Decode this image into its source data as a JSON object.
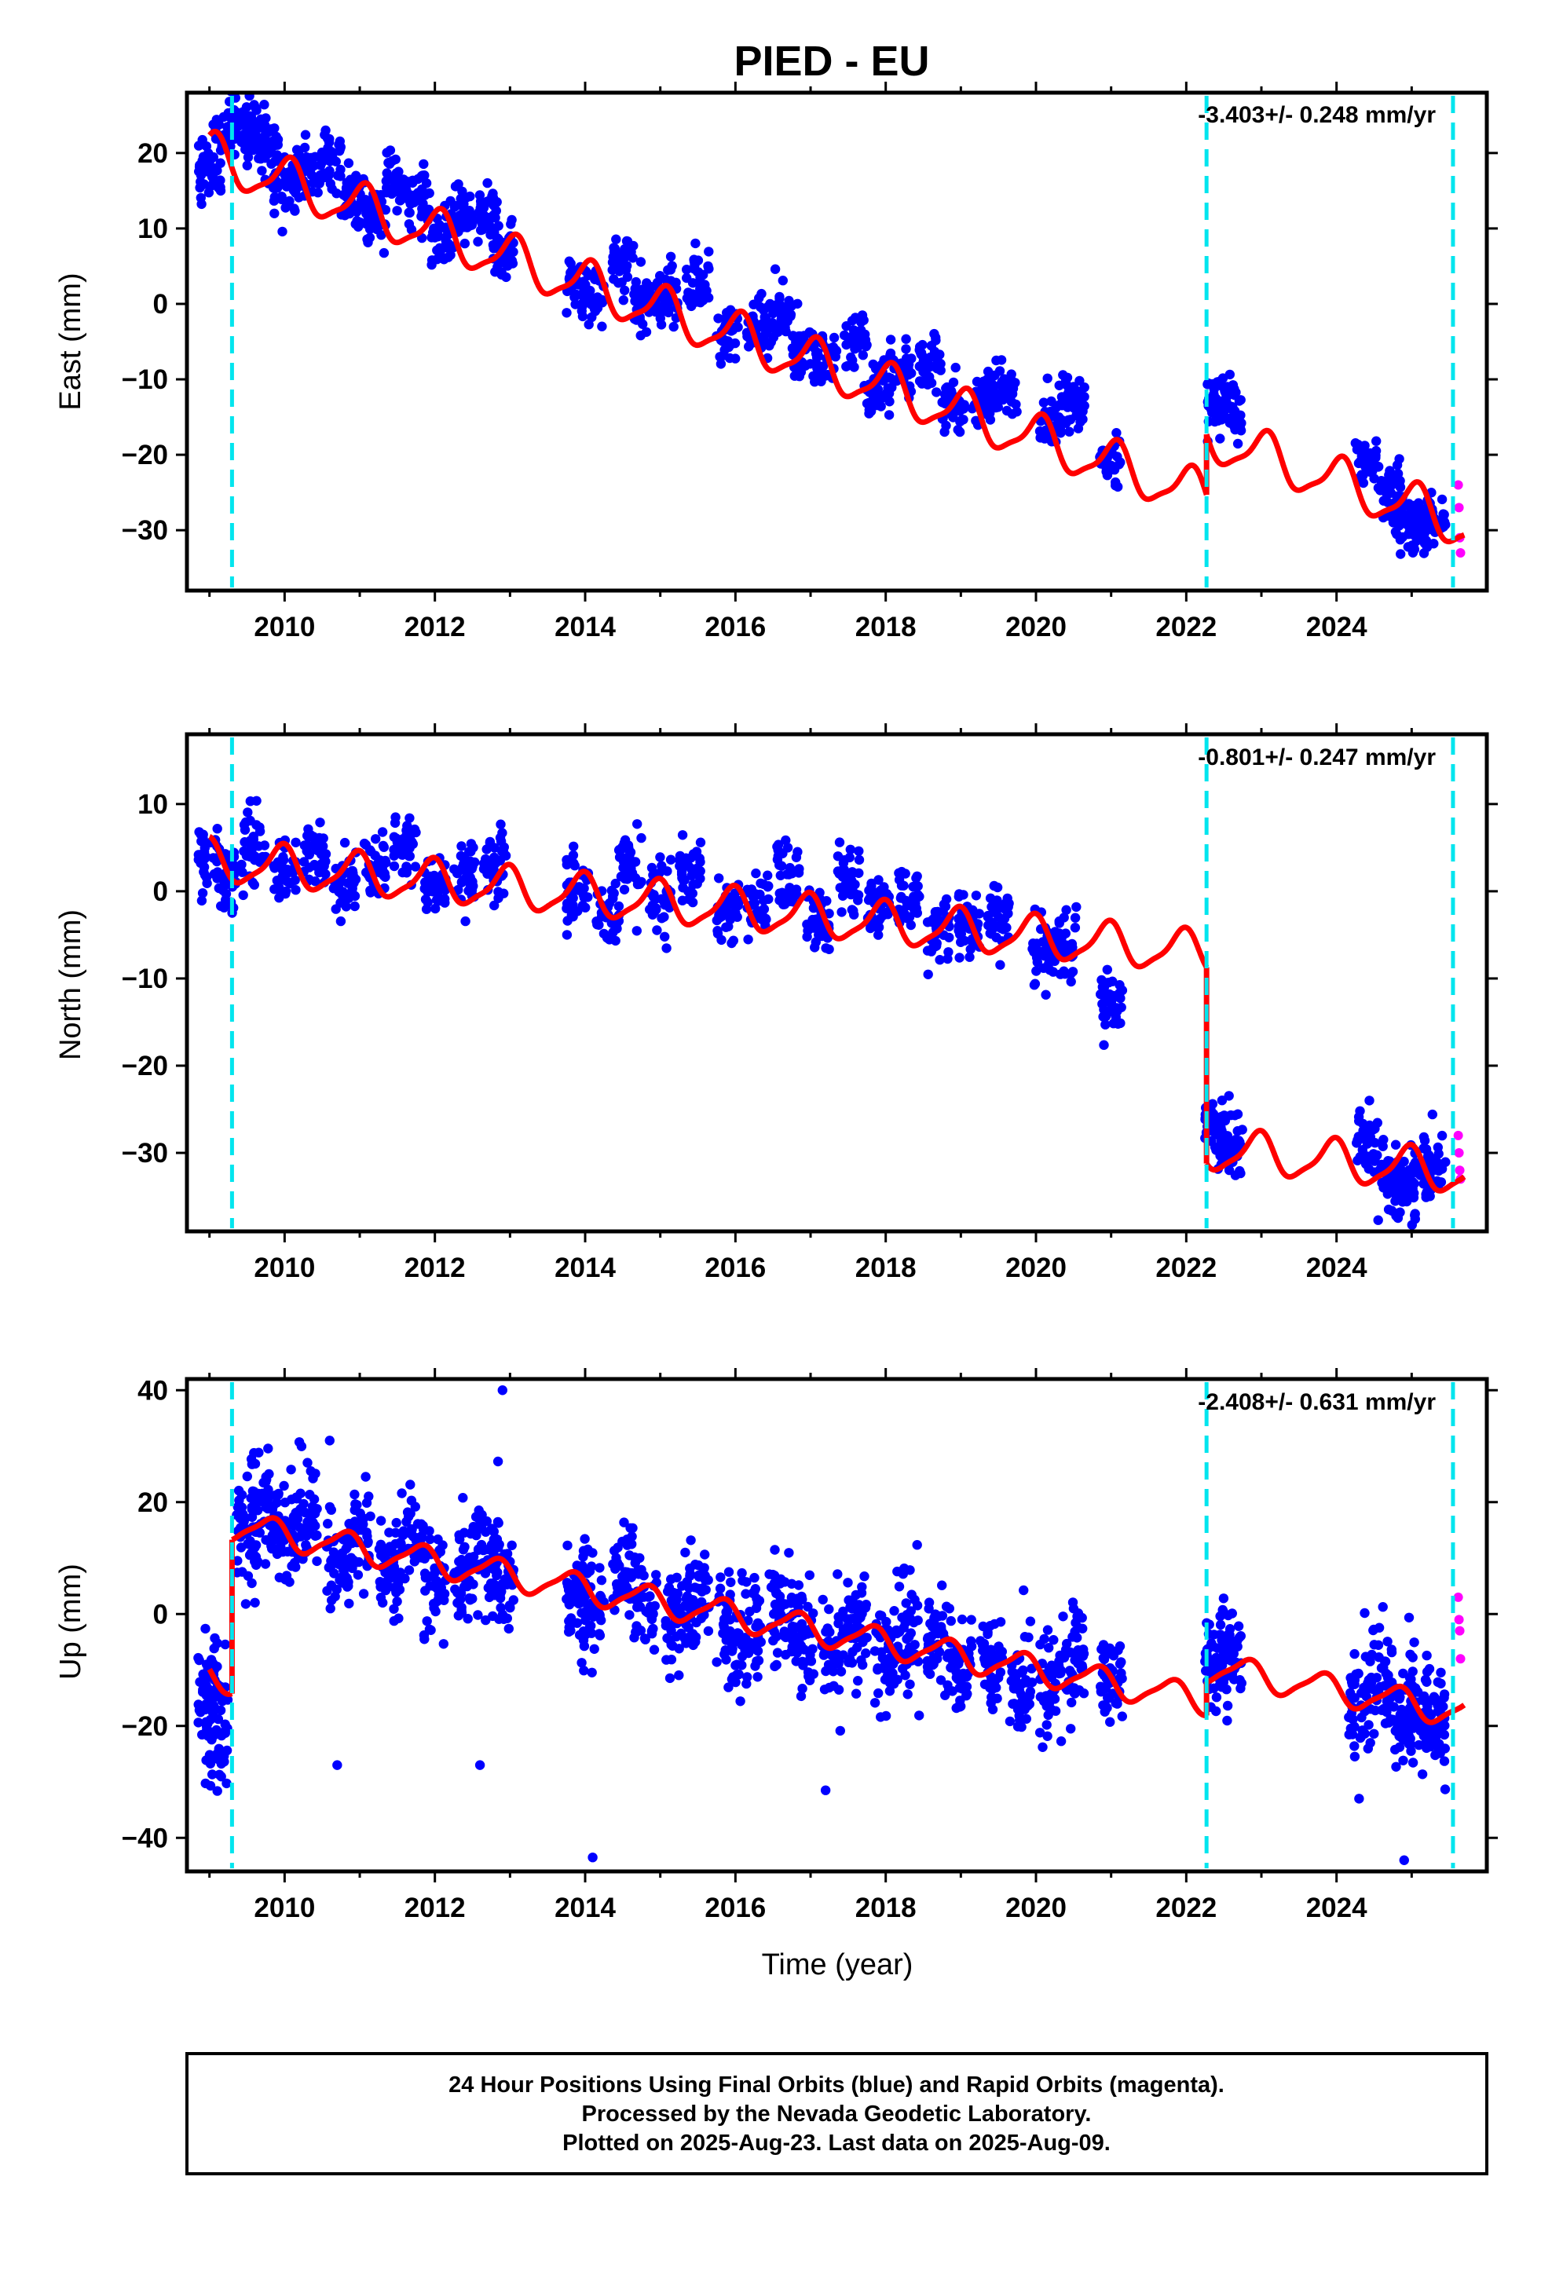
{
  "title": "PIED - EU",
  "xlabel": "Time (year)",
  "footer": {
    "line1": "24 Hour Positions Using Final Orbits (blue) and Rapid Orbits (magenta).",
    "line2": "Processed by the Nevada Geodetic Laboratory.",
    "line3": "Plotted on 2025-Aug-23. Last data on 2025-Aug-09."
  },
  "colors": {
    "final_orbits": "#0000ff",
    "rapid_orbits": "#ff00ff",
    "model": "#ff0000",
    "events": "#00e5ee"
  },
  "chart_data": [
    {
      "type": "scatter",
      "ylabel": "East (mm)",
      "rate": "-3.403+/- 0.248 mm/yr",
      "xlim": [
        2008.7,
        2026.0
      ],
      "ylim": [
        -38,
        28
      ],
      "xticks": [
        2010,
        2012,
        2014,
        2016,
        2018,
        2020,
        2022,
        2024
      ],
      "yticks": [
        20,
        10,
        0,
        -10,
        -20,
        -30
      ],
      "events": [
        2009.3,
        2022.27,
        2025.55
      ],
      "model": {
        "segments": [
          {
            "x0": 2009.0,
            "x1": 2022.27,
            "offset": 0
          },
          {
            "x0": 2022.27,
            "x1": 2025.7,
            "offset": 8
          }
        ],
        "y_at_2009": 19.5,
        "slope": -3.403,
        "annual_amp": 3.0,
        "annual_phase": 0.2,
        "semiannual_amp": 0.8,
        "semiannual_phase": 0.5
      },
      "final_orbits": [
        {
          "x": 2009.0,
          "y": 18
        },
        {
          "x": 2009.2,
          "y": 22
        },
        {
          "x": 2009.4,
          "y": 25
        },
        {
          "x": 2009.6,
          "y": 23
        },
        {
          "x": 2009.8,
          "y": 20
        },
        {
          "x": 2010.0,
          "y": 16
        },
        {
          "x": 2010.3,
          "y": 18
        },
        {
          "x": 2010.6,
          "y": 19
        },
        {
          "x": 2010.9,
          "y": 13
        },
        {
          "x": 2011.2,
          "y": 12
        },
        {
          "x": 2011.5,
          "y": 16
        },
        {
          "x": 2011.8,
          "y": 14
        },
        {
          "x": 2012.1,
          "y": 9
        },
        {
          "x": 2012.4,
          "y": 11
        },
        {
          "x": 2012.7,
          "y": 12
        },
        {
          "x": 2012.9,
          "y": 6
        },
        {
          "x": 2013.9,
          "y": 3
        },
        {
          "x": 2014.1,
          "y": 1
        },
        {
          "x": 2014.5,
          "y": 6
        },
        {
          "x": 2014.8,
          "y": 0
        },
        {
          "x": 2015.1,
          "y": 1
        },
        {
          "x": 2015.5,
          "y": 3
        },
        {
          "x": 2015.9,
          "y": -4
        },
        {
          "x": 2016.3,
          "y": -3
        },
        {
          "x": 2016.6,
          "y": -1
        },
        {
          "x": 2016.9,
          "y": -6
        },
        {
          "x": 2017.2,
          "y": -7
        },
        {
          "x": 2017.6,
          "y": -5
        },
        {
          "x": 2017.9,
          "y": -11
        },
        {
          "x": 2018.2,
          "y": -9
        },
        {
          "x": 2018.6,
          "y": -8
        },
        {
          "x": 2018.9,
          "y": -14
        },
        {
          "x": 2019.3,
          "y": -13
        },
        {
          "x": 2019.6,
          "y": -11
        },
        {
          "x": 2020.2,
          "y": -15
        },
        {
          "x": 2020.5,
          "y": -13
        },
        {
          "x": 2021.0,
          "y": -21
        },
        {
          "x": 2022.4,
          "y": -13
        },
        {
          "x": 2022.6,
          "y": -14
        },
        {
          "x": 2024.4,
          "y": -21
        },
        {
          "x": 2024.7,
          "y": -24
        },
        {
          "x": 2024.9,
          "y": -29
        },
        {
          "x": 2025.1,
          "y": -30
        },
        {
          "x": 2025.3,
          "y": -28
        }
      ],
      "rapid_orbits": [
        {
          "x": 2025.62,
          "y": -24
        },
        {
          "x": 2025.63,
          "y": -27
        },
        {
          "x": 2025.64,
          "y": -31
        },
        {
          "x": 2025.65,
          "y": -33
        }
      ]
    },
    {
      "type": "scatter",
      "ylabel": "North (mm)",
      "rate": "-0.801+/- 0.247 mm/yr",
      "xlim": [
        2008.7,
        2026.0
      ],
      "ylim": [
        -39,
        18
      ],
      "xticks": [
        2010,
        2012,
        2014,
        2016,
        2018,
        2020,
        2022,
        2024
      ],
      "yticks": [
        10,
        0,
        -10,
        -20,
        -30
      ],
      "events": [
        2009.3,
        2022.27,
        2025.55
      ],
      "model": {
        "segments": [
          {
            "x0": 2009.0,
            "x1": 2022.27,
            "offset": 0
          },
          {
            "x0": 2022.27,
            "x1": 2025.7,
            "offset": -22.5
          }
        ],
        "y_at_2009": 3.5,
        "slope": -0.801,
        "annual_amp": 2.3,
        "annual_phase": 0.3,
        "semiannual_amp": 0.6,
        "semiannual_phase": 0.6
      },
      "final_orbits": [
        {
          "x": 2009.0,
          "y": 4
        },
        {
          "x": 2009.3,
          "y": 2
        },
        {
          "x": 2009.6,
          "y": 6
        },
        {
          "x": 2010.0,
          "y": 3
        },
        {
          "x": 2010.4,
          "y": 4
        },
        {
          "x": 2010.8,
          "y": 1
        },
        {
          "x": 2011.2,
          "y": 3
        },
        {
          "x": 2011.6,
          "y": 5
        },
        {
          "x": 2012.0,
          "y": 1
        },
        {
          "x": 2012.4,
          "y": 2
        },
        {
          "x": 2012.8,
          "y": 3
        },
        {
          "x": 2013.9,
          "y": 0
        },
        {
          "x": 2014.3,
          "y": -2
        },
        {
          "x": 2014.6,
          "y": 3
        },
        {
          "x": 2015.0,
          "y": -1
        },
        {
          "x": 2015.4,
          "y": 2
        },
        {
          "x": 2015.9,
          "y": -2
        },
        {
          "x": 2016.3,
          "y": -1
        },
        {
          "x": 2016.7,
          "y": 2
        },
        {
          "x": 2017.1,
          "y": -3
        },
        {
          "x": 2017.5,
          "y": 1
        },
        {
          "x": 2017.9,
          "y": -2
        },
        {
          "x": 2018.3,
          "y": -1
        },
        {
          "x": 2018.7,
          "y": -4
        },
        {
          "x": 2019.1,
          "y": -4
        },
        {
          "x": 2019.5,
          "y": -3
        },
        {
          "x": 2020.1,
          "y": -7
        },
        {
          "x": 2020.4,
          "y": -6
        },
        {
          "x": 2021.0,
          "y": -13
        },
        {
          "x": 2022.4,
          "y": -27
        },
        {
          "x": 2022.6,
          "y": -29
        },
        {
          "x": 2024.4,
          "y": -29
        },
        {
          "x": 2024.7,
          "y": -33
        },
        {
          "x": 2024.9,
          "y": -34
        },
        {
          "x": 2025.1,
          "y": -32
        },
        {
          "x": 2025.3,
          "y": -31
        }
      ],
      "rapid_orbits": [
        {
          "x": 2025.62,
          "y": -28
        },
        {
          "x": 2025.63,
          "y": -30
        },
        {
          "x": 2025.64,
          "y": -32
        },
        {
          "x": 2025.65,
          "y": -33
        }
      ]
    },
    {
      "type": "scatter",
      "ylabel": "Up (mm)",
      "rate": "-2.408+/- 0.631 mm/yr",
      "xlim": [
        2008.7,
        2026.0
      ],
      "ylim": [
        -46,
        42
      ],
      "xticks": [
        2010,
        2012,
        2014,
        2016,
        2018,
        2020,
        2022,
        2024
      ],
      "yticks": [
        40,
        20,
        0,
        -20,
        -40
      ],
      "events": [
        2009.3,
        2022.27,
        2025.55
      ],
      "model": {
        "segments": [
          {
            "x0": 2009.0,
            "x1": 2009.3,
            "offset": -27.5
          },
          {
            "x0": 2009.3,
            "x1": 2022.27,
            "offset": 0
          },
          {
            "x0": 2022.27,
            "x1": 2025.7,
            "offset": 6
          }
        ],
        "y_at_2009": 16.5,
        "slope": -2.408,
        "annual_amp": 2.5,
        "annual_phase": 0.45,
        "semiannual_amp": 0.6,
        "semiannual_phase": 0.7
      },
      "final_orbits": [
        {
          "x": 2009.0,
          "y": -13
        },
        {
          "x": 2009.1,
          "y": -22
        },
        {
          "x": 2009.5,
          "y": 15
        },
        {
          "x": 2009.7,
          "y": 20
        },
        {
          "x": 2010.0,
          "y": 13
        },
        {
          "x": 2010.3,
          "y": 16
        },
        {
          "x": 2010.7,
          "y": 10
        },
        {
          "x": 2011.0,
          "y": 14
        },
        {
          "x": 2011.4,
          "y": 8
        },
        {
          "x": 2011.7,
          "y": 12
        },
        {
          "x": 2012.0,
          "y": 6
        },
        {
          "x": 2012.4,
          "y": 8
        },
        {
          "x": 2012.7,
          "y": 12
        },
        {
          "x": 2012.9,
          "y": 6
        },
        {
          "x": 2013.9,
          "y": 5
        },
        {
          "x": 2014.1,
          "y": 0
        },
        {
          "x": 2014.5,
          "y": 7
        },
        {
          "x": 2014.8,
          "y": 2
        },
        {
          "x": 2015.2,
          "y": 0
        },
        {
          "x": 2015.5,
          "y": 3
        },
        {
          "x": 2015.9,
          "y": -5
        },
        {
          "x": 2016.2,
          "y": -3
        },
        {
          "x": 2016.6,
          "y": 1
        },
        {
          "x": 2016.9,
          "y": -4
        },
        {
          "x": 2017.3,
          "y": -6
        },
        {
          "x": 2017.6,
          "y": -2
        },
        {
          "x": 2018.0,
          "y": -8
        },
        {
          "x": 2018.3,
          "y": -4
        },
        {
          "x": 2018.7,
          "y": -6
        },
        {
          "x": 2019.0,
          "y": -10
        },
        {
          "x": 2019.4,
          "y": -9
        },
        {
          "x": 2019.8,
          "y": -12
        },
        {
          "x": 2020.2,
          "y": -13
        },
        {
          "x": 2020.5,
          "y": -9
        },
        {
          "x": 2021.0,
          "y": -12
        },
        {
          "x": 2022.4,
          "y": -9
        },
        {
          "x": 2022.6,
          "y": -5
        },
        {
          "x": 2024.3,
          "y": -16
        },
        {
          "x": 2024.6,
          "y": -12
        },
        {
          "x": 2024.9,
          "y": -18
        },
        {
          "x": 2025.1,
          "y": -16
        },
        {
          "x": 2025.3,
          "y": -19
        }
      ],
      "outliers": [
        {
          "x": 2012.9,
          "y": 40
        },
        {
          "x": 2014.1,
          "y": -43.5
        },
        {
          "x": 2024.9,
          "y": -44
        },
        {
          "x": 2024.3,
          "y": -33
        },
        {
          "x": 2010.6,
          "y": 31
        },
        {
          "x": 2012.6,
          "y": -27
        },
        {
          "x": 2010.7,
          "y": -27
        },
        {
          "x": 2017.2,
          "y": -31.5
        }
      ],
      "rapid_orbits": [
        {
          "x": 2025.62,
          "y": 3
        },
        {
          "x": 2025.63,
          "y": -1
        },
        {
          "x": 2025.64,
          "y": -3
        },
        {
          "x": 2025.65,
          "y": -8
        }
      ]
    }
  ]
}
